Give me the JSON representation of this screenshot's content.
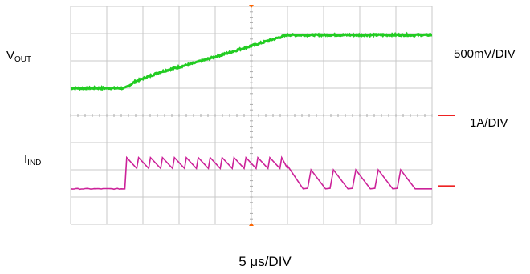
{
  "labels": {
    "vout": "V",
    "vout_sub": "OUT",
    "iind": "I",
    "iind_sub": "IND",
    "vout_scale": "500mV/DIV",
    "iind_scale": "1A/DIV",
    "time_scale": "5 μs/DIV"
  },
  "colors": {
    "grid": "#c8c8c8",
    "vout_trace": "#22cc22",
    "iind_trace": "#cc2299",
    "marker": "#ee2222",
    "trigger": "#ff6600"
  },
  "chart_data": {
    "type": "line",
    "title": "",
    "xlabel": "5 μs/DIV",
    "ylabel": "",
    "grid": true,
    "x_divisions": 10,
    "y_divisions": 8,
    "xlim": [
      0,
      10
    ],
    "ylim": [
      0,
      8
    ],
    "series": [
      {
        "name": "V",
        "scale": "500mV/DIV",
        "x": [
          0,
          1.5,
          1.8,
          2.5,
          3.5,
          4.5,
          5.5,
          6.0,
          6.2,
          7,
          8,
          9,
          10
        ],
        "y": [
          5.0,
          5.0,
          5.25,
          5.6,
          5.95,
          6.35,
          6.75,
          6.95,
          6.95,
          6.95,
          6.95,
          6.95,
          6.95
        ]
      },
      {
        "name": "I",
        "scale": "1A/DIV",
        "envelope": {
          "x": [
            0,
            1.4,
            1.5,
            5.9,
            6.0,
            10
          ],
          "y": [
            1.3,
            1.3,
            2.3,
            2.3,
            2.0,
            1.3
          ]
        },
        "ripple": [
          {
            "x_start": 1.5,
            "x_end": 6.0,
            "period": 0.33,
            "peak": 2.45,
            "valley": 2.05
          },
          {
            "x_start": 6.0,
            "x_end": 10,
            "period": 0.62,
            "peak": 2.0,
            "valley": 1.3
          }
        ]
      }
    ],
    "markers": [
      {
        "channel": "V",
        "y": 4.0
      },
      {
        "channel": "I",
        "y": 1.4
      }
    ]
  }
}
